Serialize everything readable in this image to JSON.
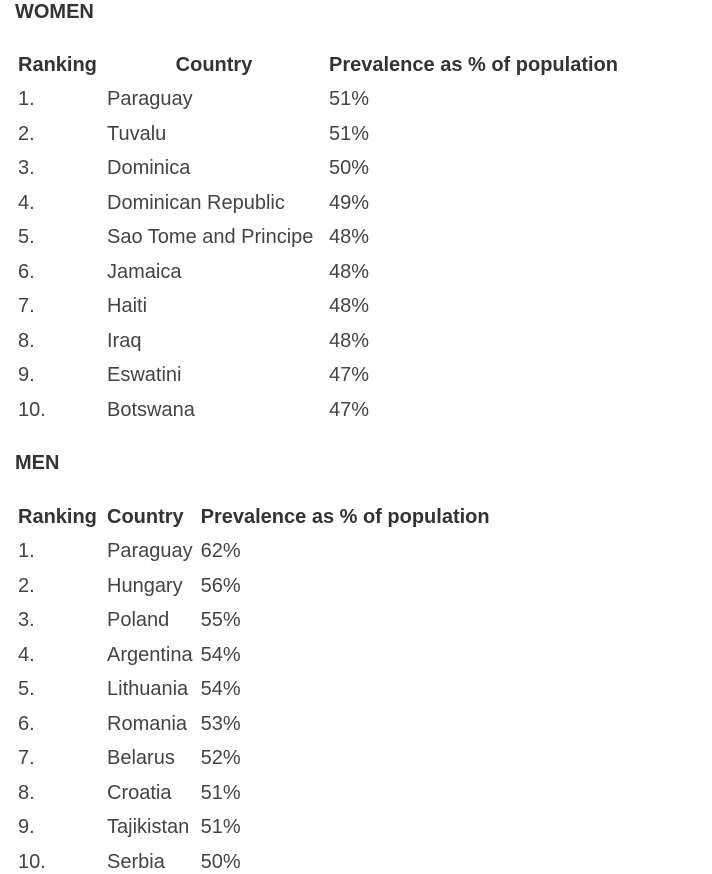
{
  "women": {
    "title": "WOMEN",
    "headers": {
      "ranking": "Ranking",
      "country": "Country",
      "prevalence": "Prevalence as % of population"
    },
    "rows": [
      {
        "rank": "1.",
        "country": "Paraguay",
        "prevalence": "51%"
      },
      {
        "rank": "2.",
        "country": "Tuvalu",
        "prevalence": "51%"
      },
      {
        "rank": "3.",
        "country": "Dominica",
        "prevalence": "50%"
      },
      {
        "rank": "4.",
        "country": "Dominican Republic",
        "prevalence": "49%"
      },
      {
        "rank": "5.",
        "country": "Sao Tome and Principe",
        "prevalence": "48%"
      },
      {
        "rank": "6.",
        "country": "Jamaica",
        "prevalence": "48%"
      },
      {
        "rank": "7.",
        "country": "Haiti",
        "prevalence": "48%"
      },
      {
        "rank": "8.",
        "country": "Iraq",
        "prevalence": "48%"
      },
      {
        "rank": "9.",
        "country": "Eswatini",
        "prevalence": "47%"
      },
      {
        "rank": "10.",
        "country": "Botswana",
        "prevalence": "47%"
      }
    ]
  },
  "men": {
    "title": "MEN",
    "headers": {
      "ranking": "Ranking",
      "country": "Country",
      "prevalence": "Prevalence as % of population"
    },
    "rows": [
      {
        "rank": "1.",
        "country": "Paraguay",
        "prevalence": "62%"
      },
      {
        "rank": "2.",
        "country": "Hungary",
        "prevalence": "56%"
      },
      {
        "rank": "3.",
        "country": "Poland",
        "prevalence": "55%"
      },
      {
        "rank": "4.",
        "country": "Argentina",
        "prevalence": "54%"
      },
      {
        "rank": "5.",
        "country": "Lithuania",
        "prevalence": "54%"
      },
      {
        "rank": "6.",
        "country": "Romania",
        "prevalence": "53%"
      },
      {
        "rank": "7.",
        "country": "Belarus",
        "prevalence": "52%"
      },
      {
        "rank": "8.",
        "country": "Croatia",
        "prevalence": "51%"
      },
      {
        "rank": "9.",
        "country": "Tajikistan",
        "prevalence": "51%"
      },
      {
        "rank": "10.",
        "country": "Serbia",
        "prevalence": "50%"
      }
    ]
  }
}
